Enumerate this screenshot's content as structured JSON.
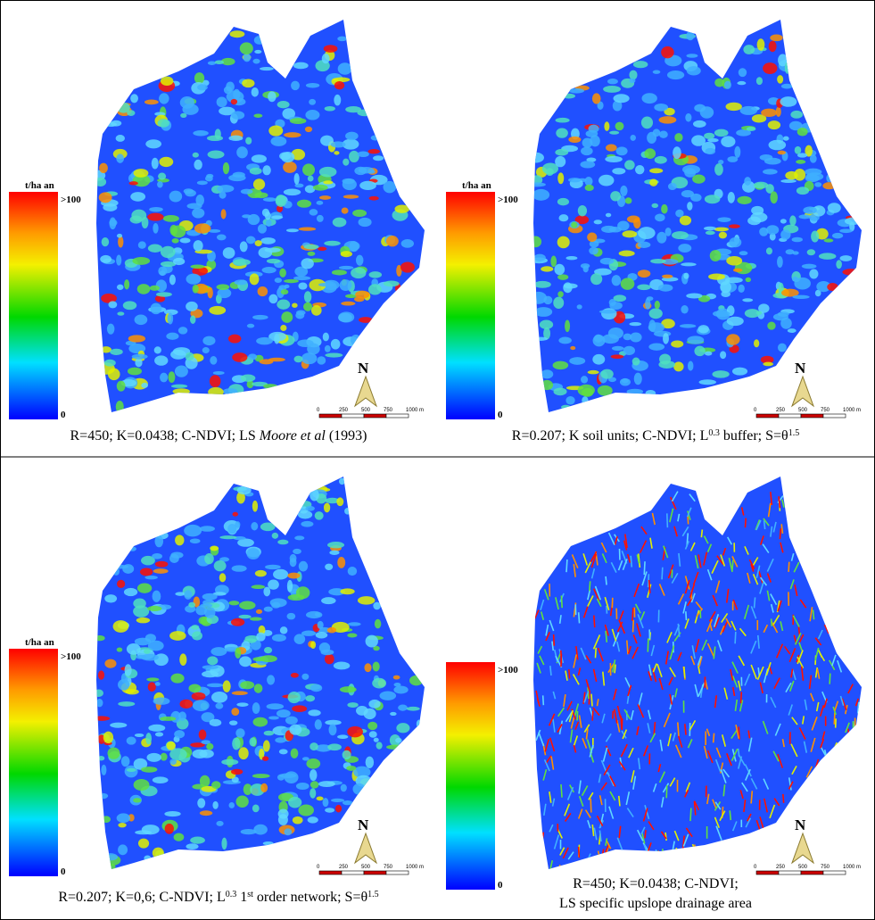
{
  "panels": [
    {
      "legend": {
        "title": "t/ha an",
        "max": ">100",
        "min": "0"
      },
      "north": "N",
      "scale_labels": [
        "0",
        "250",
        "500",
        "750",
        "1000 m"
      ],
      "caption": [
        "R=450; K=0.0438; C-NDVI; LS ",
        "Moore et al",
        " (1993)"
      ]
    },
    {
      "legend": {
        "title": "t/ha an",
        "max": ">100",
        "min": "0"
      },
      "north": "N",
      "scale_labels": [
        "0",
        "250",
        "500",
        "750",
        "1000 m"
      ],
      "caption": [
        "R=0.207; K soil units; C-NDVI; L",
        "0.3",
        " buffer; S=θ",
        "1.5"
      ]
    },
    {
      "legend": {
        "title": "t/ha an",
        "max": ">100",
        "min": "0"
      },
      "north": "N",
      "scale_labels": [
        "0",
        "250",
        "500",
        "750",
        "1000 m"
      ],
      "caption": [
        "R=0.207; K=0,6; C-NDVI; L",
        "0.3",
        " 1",
        "st",
        " order network; S=θ",
        "1.5"
      ]
    },
    {
      "legend": {
        "max": ">100",
        "min": "0"
      },
      "north": "N",
      "scale_labels": [
        "0",
        "250",
        "500",
        "750",
        "1000 m"
      ],
      "caption": [
        "R=450; K=0.0438; C-NDVI;",
        "LS specific upslope drainage area"
      ]
    }
  ]
}
